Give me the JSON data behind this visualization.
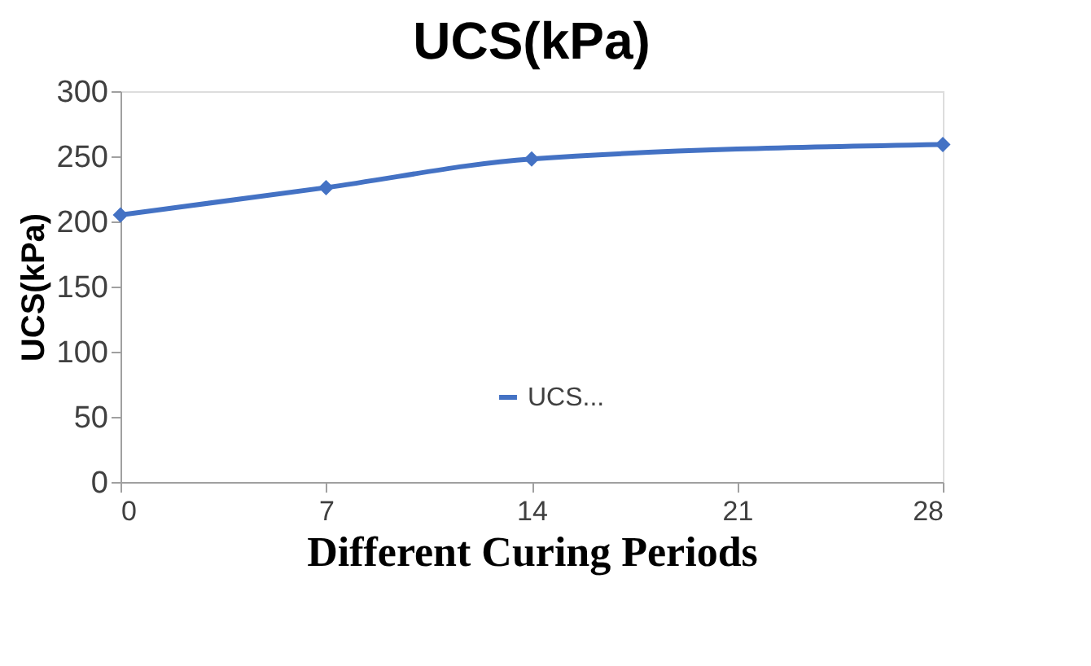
{
  "chart_data": {
    "type": "line",
    "title": "UCS(kPa)",
    "xlabel": "Different Curing Periods",
    "ylabel": "UCS(kPa)",
    "x": [
      0,
      7,
      14,
      28
    ],
    "series": [
      {
        "name": "UCS...",
        "color": "#4472c4",
        "values": [
          205,
          226,
          248,
          259
        ]
      }
    ],
    "xlim": [
      0,
      28
    ],
    "xticks": [
      0,
      7,
      14,
      21,
      28
    ],
    "ylim": [
      0,
      300
    ],
    "yticks": [
      0,
      50,
      100,
      150,
      200,
      250,
      300
    ],
    "grid": false,
    "legend": "bottom",
    "marker": "diamond",
    "line_style": "solid"
  }
}
